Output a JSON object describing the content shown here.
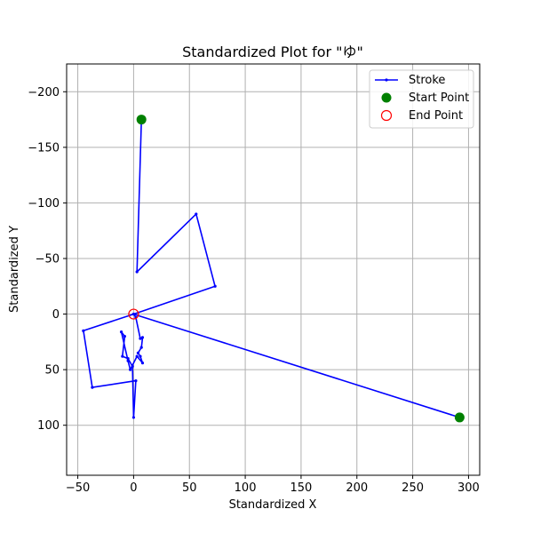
{
  "chart_data": {
    "type": "line",
    "title": "Standardized Plot for \"ゆ\"",
    "xlabel": "Standardized X",
    "ylabel": "Standardized Y",
    "xlim": [
      -60,
      310
    ],
    "ylim": [
      -225,
      145
    ],
    "y_inverted": true,
    "x_ticks": [
      -50,
      0,
      50,
      100,
      150,
      200,
      250,
      300
    ],
    "y_ticks": [
      -200,
      -150,
      -100,
      -50,
      0,
      50,
      100
    ],
    "x_tick_labels": [
      "−50",
      "0",
      "50",
      "100",
      "150",
      "200",
      "250",
      "300"
    ],
    "y_tick_labels": [
      "−200",
      "−150",
      "−100",
      "−50",
      "0",
      "50",
      "100"
    ],
    "grid": true,
    "legend_position": "top-right",
    "colors": {
      "stroke": "#0000ff",
      "start": "#008000",
      "end": "#ff0000",
      "grid": "#b0b0b0"
    },
    "series": [
      {
        "name": "Stroke",
        "points": [
          [
            7,
            -175
          ],
          [
            3,
            -38
          ],
          [
            56,
            -90
          ],
          [
            73,
            -25
          ],
          [
            0,
            0
          ],
          [
            -45,
            15
          ],
          [
            -37,
            66
          ],
          [
            2,
            60
          ],
          [
            0,
            93
          ],
          [
            -1,
            47
          ],
          [
            -5,
            40
          ],
          [
            -10,
            38
          ],
          [
            -8,
            20
          ],
          [
            -11,
            16
          ],
          [
            -5,
            42
          ],
          [
            -3,
            50
          ],
          [
            3,
            38
          ],
          [
            8,
            44
          ],
          [
            6,
            38
          ],
          [
            4,
            35
          ],
          [
            7,
            30
          ],
          [
            8,
            21
          ],
          [
            6,
            22
          ],
          [
            2,
            3
          ],
          [
            0,
            0
          ],
          [
            292,
            93
          ]
        ]
      }
    ],
    "start_point": {
      "name": "Start Point",
      "x": 292,
      "y": 93
    },
    "end_point": {
      "name": "End Point",
      "x": 0,
      "y": 0
    }
  }
}
